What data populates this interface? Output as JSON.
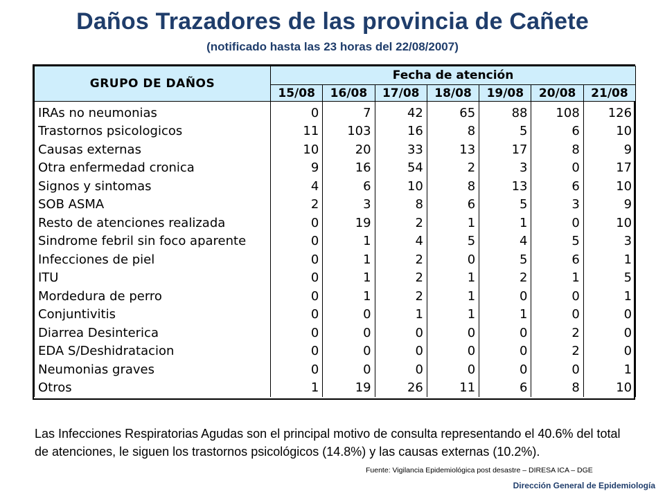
{
  "title": "Daños Trazadores de las provincia de Cañete",
  "subtitle": "(notificado hasta las 23 horas del 22/08/2007)",
  "table": {
    "group_header": "GRUPO DE DAÑOS",
    "date_header": "Fecha de atención",
    "dates": [
      "15/08",
      "16/08",
      "17/08",
      "18/08",
      "19/08",
      "20/08",
      "21/08"
    ],
    "rows": [
      {
        "name": "IRAs no neumonias",
        "values": [
          0,
          7,
          42,
          65,
          88,
          108,
          126
        ]
      },
      {
        "name": "Trastornos psicologicos",
        "values": [
          11,
          103,
          16,
          8,
          5,
          6,
          10
        ]
      },
      {
        "name": "Causas externas",
        "values": [
          10,
          20,
          33,
          13,
          17,
          8,
          9
        ]
      },
      {
        "name": "Otra enfermedad cronica",
        "values": [
          9,
          16,
          54,
          2,
          3,
          0,
          17
        ]
      },
      {
        "name": "Signos y sintomas",
        "values": [
          4,
          6,
          10,
          8,
          13,
          6,
          10
        ]
      },
      {
        "name": "SOB ASMA",
        "values": [
          2,
          3,
          8,
          6,
          5,
          3,
          9
        ]
      },
      {
        "name": "Resto de atenciones realizada",
        "values": [
          0,
          19,
          2,
          1,
          1,
          0,
          10
        ]
      },
      {
        "name": "Sindrome febril sin foco aparente",
        "values": [
          0,
          1,
          4,
          5,
          4,
          5,
          3
        ]
      },
      {
        "name": "Infecciones de piel",
        "values": [
          0,
          1,
          2,
          0,
          5,
          6,
          1
        ]
      },
      {
        "name": "ITU",
        "values": [
          0,
          1,
          2,
          1,
          2,
          1,
          5
        ]
      },
      {
        "name": "Mordedura de perro",
        "values": [
          0,
          1,
          2,
          1,
          0,
          0,
          1
        ]
      },
      {
        "name": "Conjuntivitis",
        "values": [
          0,
          0,
          1,
          1,
          1,
          0,
          0
        ]
      },
      {
        "name": "Diarrea Desinterica",
        "values": [
          0,
          0,
          0,
          0,
          0,
          2,
          0
        ]
      },
      {
        "name": "EDA S/Deshidratacion",
        "values": [
          0,
          0,
          0,
          0,
          0,
          2,
          0
        ]
      },
      {
        "name": "Neumonias graves",
        "values": [
          0,
          0,
          0,
          0,
          0,
          0,
          1
        ]
      },
      {
        "name": "Otros",
        "values": [
          1,
          19,
          26,
          11,
          6,
          8,
          10
        ]
      }
    ]
  },
  "summary": "Las Infecciones Respiratorias Agudas son el principal motivo de consulta representando el 40.6% del total de atenciones, le siguen los trastornos psicológicos (14.8%) y las causas externas (10.2%).",
  "source": "Fuente: Vigilancia Epidemiológica post desastre – DIRESA ICA – DGE",
  "organization": "Dirección General de Epidemiología",
  "colors": {
    "title": "#1f3d6b",
    "header_bg": "#cfeefc"
  }
}
